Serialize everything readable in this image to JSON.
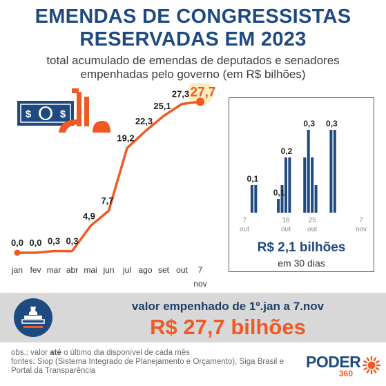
{
  "title": {
    "line1": "EMENDAS DE CONGRESSISTAS",
    "line2": "RESERVADAS EM 2023"
  },
  "subtitle": {
    "line1": "total acumulado de emendas de deputados e senadores",
    "line2": "empenhadas pelo governo (em R$ bilhões)"
  },
  "icons": {
    "illustration": "money-note-and-stamp-icon",
    "band": "stamp-icon",
    "brand": "sunburst-icon"
  },
  "colors": {
    "navy": "#1f4a80",
    "orange": "#ef5a24",
    "highlight": "#fbeec0",
    "band": "#d8d8d8"
  },
  "chart_data": [
    {
      "type": "line",
      "title": "",
      "categories": [
        "jan",
        "fev",
        "mar",
        "abr",
        "mai",
        "jun",
        "jul",
        "ago",
        "set",
        "out",
        "7 nov"
      ],
      "values": [
        0.0,
        0.0,
        0.3,
        0.3,
        4.9,
        7.7,
        19.2,
        22.3,
        25.1,
        27.3,
        27.7
      ],
      "value_labels": [
        "0,0",
        "0,0",
        "0,3",
        "0,3",
        "4,9",
        "7,7",
        "19,2",
        "22,3",
        "25,1",
        "27,3",
        "27,7"
      ],
      "highlight_index": 10,
      "ylim": [
        0,
        28
      ],
      "unit": "R$ bilhões",
      "grid": false
    },
    {
      "type": "bar",
      "title": "",
      "period_start": "2023-10-07",
      "period_end": "2023-11-07",
      "tick_labels": [
        {
          "day": "7",
          "month": "out",
          "date": "2023-10-07"
        },
        {
          "day": "18",
          "month": "out",
          "date": "2023-10-18"
        },
        {
          "day": "25",
          "month": "out",
          "date": "2023-10-25"
        },
        {
          "day": "7",
          "month": "nov",
          "date": "2023-11-07"
        }
      ],
      "points": [
        {
          "date": "2023-10-09",
          "value": 0.1
        },
        {
          "date": "2023-10-10",
          "value": 0.1
        },
        {
          "date": "2023-10-16",
          "value": 0.05
        },
        {
          "date": "2023-10-17",
          "value": 0.1
        },
        {
          "date": "2023-10-18",
          "value": 0.2
        },
        {
          "date": "2023-10-19",
          "value": 0.2
        },
        {
          "date": "2023-10-23",
          "value": 0.2
        },
        {
          "date": "2023-10-24",
          "value": 0.3
        },
        {
          "date": "2023-10-25",
          "value": 0.2
        },
        {
          "date": "2023-10-26",
          "value": 0.1
        },
        {
          "date": "2023-10-30",
          "value": 0.3
        },
        {
          "date": "2023-10-31",
          "value": 0.3
        }
      ],
      "data_labels": [
        {
          "date": "2023-10-09",
          "text": "0,1"
        },
        {
          "date": "2023-10-16",
          "text": "0,1"
        },
        {
          "date": "2023-10-18",
          "text": "0,2"
        },
        {
          "date": "2023-10-24",
          "text": "0,3"
        },
        {
          "date": "2023-10-30",
          "text": "0,3"
        }
      ],
      "ylim": [
        0,
        0.35
      ],
      "total": "R$ 2,1 bilhões",
      "period_text": "em 30 dias"
    }
  ],
  "band": {
    "label": "valor empenhado de 1º.jan a 7.nov",
    "value": "R$ 27,7 bilhões"
  },
  "notes": {
    "obs_prefix": "obs.: valor ",
    "obs_bold": "até",
    "obs_suffix": " o último dia disponível de cada mês",
    "sources_1": "fontes: Siop (Sistema Integrado de Planejamento e Orçamento), Siga Brasil e",
    "sources_2": "Portal da Transparência"
  },
  "brand": {
    "word": "PODER",
    "number": "360"
  }
}
